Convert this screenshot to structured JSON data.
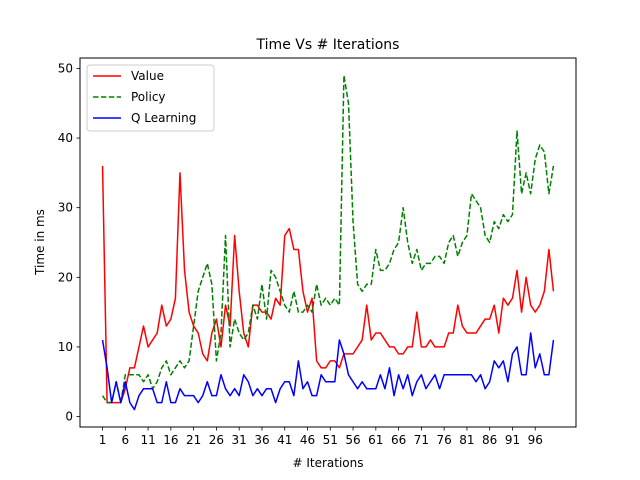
{
  "chart_data": {
    "type": "line",
    "title": "Time Vs # Iterations",
    "xlabel": "# Iterations",
    "ylabel": "Time in ms",
    "xlim": [
      -3.95,
      104.95
    ],
    "ylim": [
      -1.5,
      51.5
    ],
    "xticks": [
      1,
      6,
      11,
      16,
      21,
      26,
      31,
      36,
      41,
      46,
      51,
      56,
      61,
      66,
      71,
      76,
      81,
      86,
      91,
      96
    ],
    "yticks": [
      0,
      10,
      20,
      30,
      40,
      50
    ],
    "grid": false,
    "legend_position": "upper-left",
    "x": [
      1,
      2,
      3,
      4,
      5,
      6,
      7,
      8,
      9,
      10,
      11,
      12,
      13,
      14,
      15,
      16,
      17,
      18,
      19,
      20,
      21,
      22,
      23,
      24,
      25,
      26,
      27,
      28,
      29,
      30,
      31,
      32,
      33,
      34,
      35,
      36,
      37,
      38,
      39,
      40,
      41,
      42,
      43,
      44,
      45,
      46,
      47,
      48,
      49,
      50,
      51,
      52,
      53,
      54,
      55,
      56,
      57,
      58,
      59,
      60,
      61,
      62,
      63,
      64,
      65,
      66,
      67,
      68,
      69,
      70,
      71,
      72,
      73,
      74,
      75,
      76,
      77,
      78,
      79,
      80,
      81,
      82,
      83,
      84,
      85,
      86,
      87,
      88,
      89,
      90,
      91,
      92,
      93,
      94,
      95,
      96,
      97,
      98,
      99,
      100
    ],
    "series": [
      {
        "name": "Value",
        "color": "#ff0000",
        "dash": "solid",
        "values": [
          36,
          2,
          2,
          2,
          2,
          4,
          7,
          7,
          10,
          13,
          10,
          11,
          12,
          16,
          13,
          14,
          17,
          35,
          21,
          15,
          13,
          12,
          9,
          8,
          12,
          14,
          10,
          16,
          13,
          26,
          18,
          12,
          10,
          16,
          16,
          15,
          15,
          14,
          17,
          16,
          26,
          27,
          24,
          24,
          18,
          15,
          17,
          8,
          7,
          7,
          8,
          8,
          7,
          9,
          9,
          9,
          10,
          11,
          16,
          11,
          12,
          12,
          11,
          10,
          10,
          9,
          9,
          10,
          10,
          15,
          10,
          10,
          11,
          10,
          10,
          10,
          12,
          12,
          16,
          13,
          12,
          12,
          12,
          13,
          14,
          14,
          16,
          12,
          17,
          16,
          17,
          21,
          15,
          20,
          16,
          15,
          16,
          18,
          24,
          18
        ]
      },
      {
        "name": "Policy",
        "color": "#008000",
        "dash": "dashed",
        "values": [
          3,
          2,
          2,
          5,
          2,
          6,
          6,
          6,
          6,
          5,
          6,
          4,
          5,
          7,
          8,
          6,
          7,
          8,
          7,
          8,
          13,
          18,
          20,
          22,
          19,
          8,
          12,
          26,
          10,
          14,
          12,
          11,
          12,
          16,
          14,
          19,
          14,
          21,
          20,
          18,
          16,
          15,
          18,
          15,
          15,
          16,
          15,
          19,
          16,
          17,
          16,
          17,
          16,
          49,
          45,
          28,
          19,
          18,
          19,
          19,
          24,
          21,
          21,
          22,
          24,
          25,
          30,
          25,
          22,
          24,
          21,
          22,
          22,
          23,
          23,
          22,
          25,
          26,
          23,
          25,
          26,
          32,
          31,
          30,
          26,
          25,
          28,
          27,
          29,
          28,
          29,
          41,
          32,
          35,
          32,
          37,
          39,
          38,
          32,
          36
        ]
      },
      {
        "name": "Q Learning",
        "color": "#0000ff",
        "dash": "solid",
        "values": [
          11,
          7,
          2,
          5,
          2,
          5,
          2,
          1,
          3,
          4,
          4,
          4,
          2,
          2,
          5,
          2,
          2,
          4,
          3,
          3,
          3,
          2,
          3,
          5,
          3,
          3,
          6,
          4,
          3,
          4,
          3,
          6,
          5,
          3,
          4,
          3,
          4,
          4,
          2,
          4,
          5,
          5,
          3,
          8,
          4,
          5,
          3,
          3,
          6,
          5,
          5,
          5,
          11,
          9,
          6,
          5,
          4,
          5,
          4,
          4,
          4,
          6,
          4,
          7,
          3,
          6,
          4,
          6,
          3,
          5,
          6,
          4,
          5,
          6,
          4,
          6,
          6,
          6,
          6,
          6,
          6,
          6,
          5,
          6,
          4,
          5,
          8,
          7,
          8,
          5,
          9,
          10,
          6,
          6,
          12,
          7,
          9,
          6,
          6,
          11
        ]
      }
    ]
  }
}
